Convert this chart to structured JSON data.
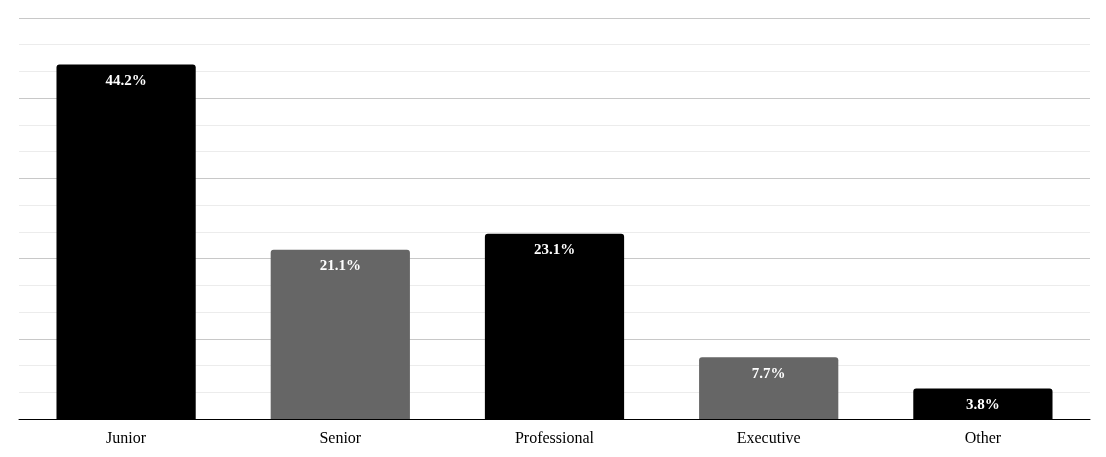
{
  "chart_data": {
    "type": "bar",
    "categories": [
      "Junior",
      "Senior",
      "Professional",
      "Executive",
      "Other"
    ],
    "values": [
      44.2,
      21.1,
      23.1,
      7.7,
      3.8
    ],
    "colors": [
      "#000000",
      "#666666",
      "#000000",
      "#666666",
      "#000000"
    ],
    "value_labels": [
      "44.2%",
      "21.1%",
      "23.1%",
      "7.7%",
      "3.8%"
    ],
    "ylim": [
      0,
      50
    ],
    "yticks": [
      {
        "value": 0,
        "label": null
      },
      {
        "value": 10,
        "label": null
      },
      {
        "value": 20,
        "label": null
      },
      {
        "value": 30,
        "label": null
      },
      {
        "value": 40,
        "label": null
      },
      {
        "value": 50,
        "label": null
      }
    ],
    "grid": "y"
  }
}
